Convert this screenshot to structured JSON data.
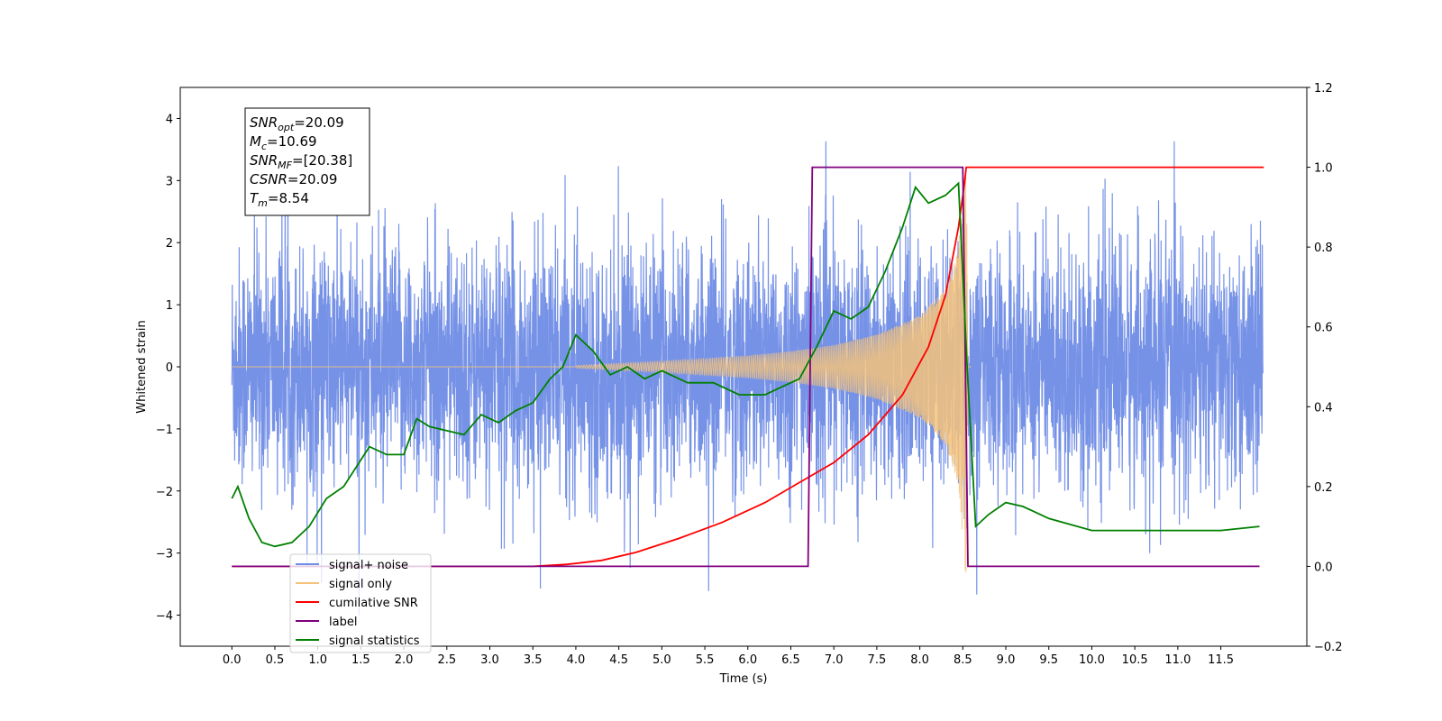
{
  "chart_data": {
    "type": "line",
    "xlabel": "Time (s)",
    "ylabel": "Whitened strain",
    "xlim": [
      -0.6,
      12.5
    ],
    "ylim_left": [
      -4.5,
      4.5
    ],
    "ylim_right": [
      -0.2,
      1.2
    ],
    "xticks": [
      0.0,
      0.5,
      1.0,
      1.5,
      2.0,
      2.5,
      3.0,
      3.5,
      4.0,
      4.5,
      5.0,
      5.5,
      6.0,
      6.5,
      7.0,
      7.5,
      8.0,
      8.5,
      9.0,
      9.5,
      10.0,
      10.5,
      11.0,
      11.5
    ],
    "yticks_left": [
      -4,
      -3,
      -2,
      -1,
      0,
      1,
      2,
      3,
      4
    ],
    "yticks_right": [
      -0.2,
      0.0,
      0.2,
      0.4,
      0.6,
      0.8,
      1.0,
      1.2
    ],
    "grid": false,
    "legend_position": "lower-left",
    "annotation": {
      "lines": [
        {
          "base": "SNR",
          "sub": "opt",
          "value": "=20.09"
        },
        {
          "base": "M",
          "sub": "c",
          "value": "=10.69"
        },
        {
          "base": "SNR",
          "sub": "MF",
          "value": "=[20.38]"
        },
        {
          "base": "CSNR",
          "sub": "",
          "value": "=20.09"
        },
        {
          "base": "T",
          "sub": "m",
          "value": "=8.54"
        }
      ]
    },
    "series": [
      {
        "name": "signal+ noise",
        "axis": "left",
        "color": "#6f8ce6",
        "description": "noise band roughly -2 to +2 with spikes to about +/-3.5",
        "x_range": [
          0.0,
          11.99
        ]
      },
      {
        "name": "signal only",
        "axis": "left",
        "color": "#f5c27a",
        "envelope": {
          "x": [
            4.0,
            5.0,
            6.0,
            6.5,
            7.0,
            7.5,
            8.0,
            8.3,
            8.45,
            8.54,
            8.56
          ],
          "amp": [
            0.02,
            0.09,
            0.18,
            0.25,
            0.35,
            0.52,
            0.82,
            1.25,
            1.9,
            3.5,
            0.05
          ]
        }
      },
      {
        "name": "cumilative SNR",
        "axis": "right",
        "color": "#ff0000",
        "points": [
          [
            0.0,
            0.0
          ],
          [
            3.5,
            0.0
          ],
          [
            3.9,
            0.005
          ],
          [
            4.3,
            0.015
          ],
          [
            4.7,
            0.035
          ],
          [
            5.2,
            0.07
          ],
          [
            5.7,
            0.11
          ],
          [
            6.2,
            0.16
          ],
          [
            6.6,
            0.21
          ],
          [
            7.0,
            0.26
          ],
          [
            7.4,
            0.33
          ],
          [
            7.8,
            0.43
          ],
          [
            8.1,
            0.55
          ],
          [
            8.3,
            0.68
          ],
          [
            8.45,
            0.85
          ],
          [
            8.52,
            0.96
          ],
          [
            8.54,
            1.0
          ],
          [
            12.0,
            1.0
          ]
        ]
      },
      {
        "name": "label",
        "axis": "right",
        "color": "#800080",
        "points": [
          [
            0.0,
            0.0
          ],
          [
            6.7,
            0.0
          ],
          [
            6.75,
            1.0
          ],
          [
            8.5,
            1.0
          ],
          [
            8.56,
            0.0
          ],
          [
            11.95,
            0.0
          ]
        ]
      },
      {
        "name": "signal statistics",
        "axis": "right",
        "color": "#008000",
        "points": [
          [
            0.0,
            0.17
          ],
          [
            0.07,
            0.2
          ],
          [
            0.2,
            0.12
          ],
          [
            0.35,
            0.06
          ],
          [
            0.5,
            0.05
          ],
          [
            0.7,
            0.06
          ],
          [
            0.9,
            0.1
          ],
          [
            1.1,
            0.17
          ],
          [
            1.3,
            0.2
          ],
          [
            1.6,
            0.3
          ],
          [
            1.8,
            0.28
          ],
          [
            2.0,
            0.28
          ],
          [
            2.15,
            0.37
          ],
          [
            2.3,
            0.35
          ],
          [
            2.5,
            0.34
          ],
          [
            2.7,
            0.33
          ],
          [
            2.9,
            0.38
          ],
          [
            3.1,
            0.36
          ],
          [
            3.3,
            0.39
          ],
          [
            3.5,
            0.41
          ],
          [
            3.7,
            0.47
          ],
          [
            3.85,
            0.5
          ],
          [
            4.0,
            0.58
          ],
          [
            4.2,
            0.54
          ],
          [
            4.4,
            0.48
          ],
          [
            4.6,
            0.5
          ],
          [
            4.8,
            0.47
          ],
          [
            5.0,
            0.49
          ],
          [
            5.3,
            0.46
          ],
          [
            5.6,
            0.46
          ],
          [
            5.9,
            0.43
          ],
          [
            6.2,
            0.43
          ],
          [
            6.4,
            0.45
          ],
          [
            6.6,
            0.47
          ],
          [
            6.8,
            0.55
          ],
          [
            7.0,
            0.64
          ],
          [
            7.2,
            0.62
          ],
          [
            7.4,
            0.65
          ],
          [
            7.6,
            0.74
          ],
          [
            7.8,
            0.85
          ],
          [
            7.95,
            0.95
          ],
          [
            8.1,
            0.91
          ],
          [
            8.3,
            0.93
          ],
          [
            8.45,
            0.96
          ],
          [
            8.55,
            0.5
          ],
          [
            8.65,
            0.1
          ],
          [
            8.8,
            0.13
          ],
          [
            9.0,
            0.16
          ],
          [
            9.2,
            0.15
          ],
          [
            9.5,
            0.12
          ],
          [
            10.0,
            0.09
          ],
          [
            10.5,
            0.09
          ],
          [
            11.0,
            0.09
          ],
          [
            11.5,
            0.09
          ],
          [
            11.95,
            0.1
          ]
        ]
      }
    ]
  }
}
